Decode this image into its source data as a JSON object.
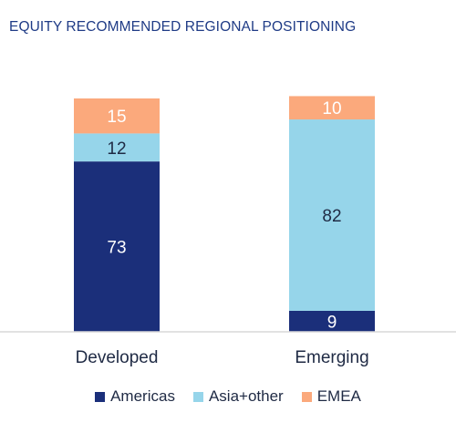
{
  "chart_data": {
    "type": "bar",
    "stacked": true,
    "title": "EQUITY RECOMMENDED REGIONAL POSITIONING",
    "categories": [
      "Developed",
      "Emerging"
    ],
    "series": [
      {
        "name": "Americas",
        "values": [
          73,
          9
        ],
        "color": "#1b2f7a",
        "label_color": "#ffffff"
      },
      {
        "name": "Asia+other",
        "values": [
          12,
          82
        ],
        "color": "#96d5ea",
        "label_color": "#1f2a44"
      },
      {
        "name": "EMEA",
        "values": [
          15,
          10
        ],
        "color": "#fba97c",
        "label_color": "#ffffff"
      }
    ],
    "ylim": [
      0,
      100
    ],
    "grid": false,
    "legend_position": "bottom"
  }
}
